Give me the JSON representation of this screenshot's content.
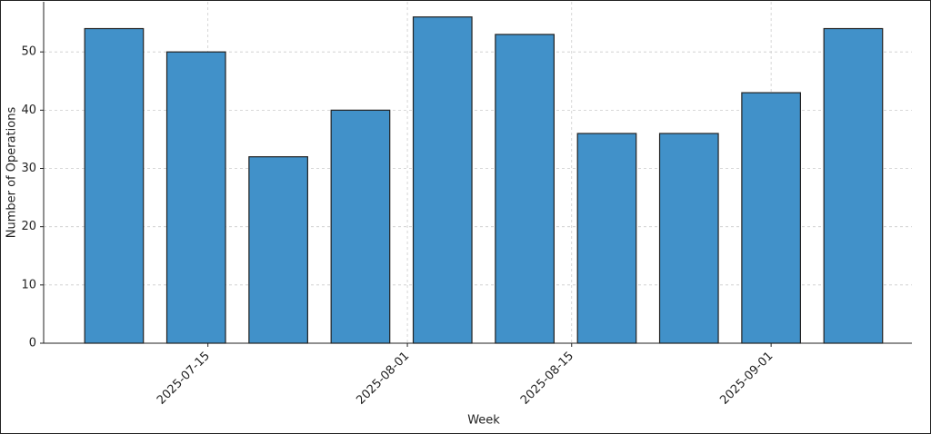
{
  "chart_data": {
    "type": "bar",
    "x_label": "Week",
    "y_label": "Number of Operations",
    "x": [
      "2025-07-07",
      "2025-07-14",
      "2025-07-21",
      "2025-07-28",
      "2025-08-04",
      "2025-08-11",
      "2025-08-18",
      "2025-08-25",
      "2025-09-01",
      "2025-09-08"
    ],
    "values": [
      54,
      50,
      32,
      40,
      56,
      53,
      36,
      36,
      43,
      54
    ],
    "color": "#4191c9",
    "xlim": [
      "2025-07-01",
      "2025-09-13"
    ],
    "xticks": [
      "2025-07-15",
      "2025-08-01",
      "2025-08-15",
      "2025-09-01"
    ],
    "ylim": [
      0,
      58.6
    ],
    "yticks": [
      0,
      10,
      20,
      30,
      40,
      50
    ],
    "grid": true
  }
}
